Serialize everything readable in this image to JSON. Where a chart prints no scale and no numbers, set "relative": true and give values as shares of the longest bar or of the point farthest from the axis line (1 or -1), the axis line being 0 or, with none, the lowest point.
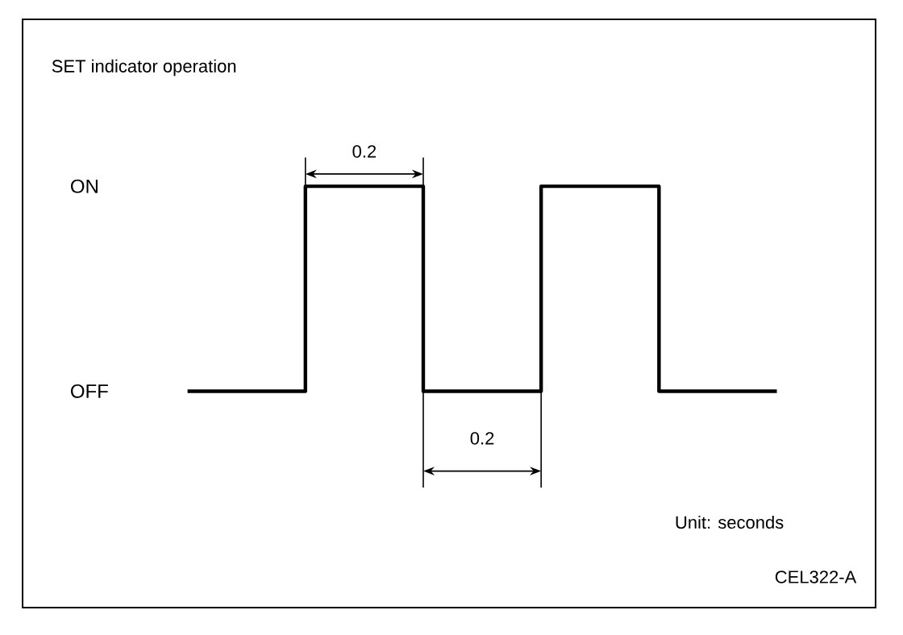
{
  "chart_data": {
    "type": "step",
    "title": "SET indicator operation",
    "categories": [
      null,
      null,
      null,
      null,
      null,
      null
    ],
    "values": [
      0,
      1,
      0,
      1,
      0,
      0
    ],
    "color": "#000000",
    "relative": true,
    "tick_labels": false,
    "annotations": [
      "0.2",
      "ON",
      "OFF",
      "0.2",
      "Unit: seconds",
      "CEL322-A"
    ]
  }
}
